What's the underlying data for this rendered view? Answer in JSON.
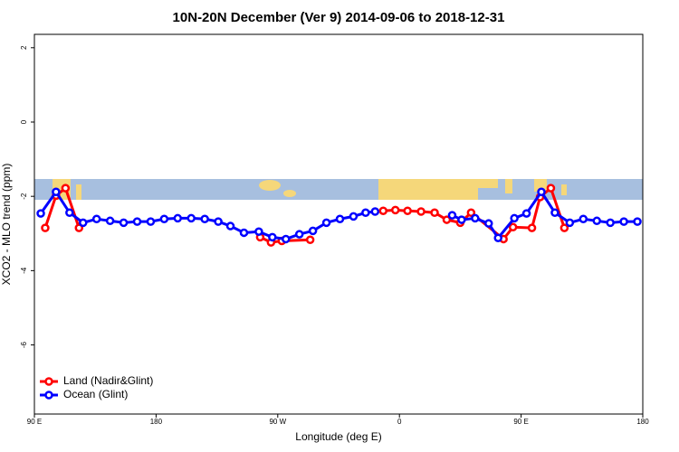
{
  "chart_data": {
    "type": "line",
    "title": "10N-20N December (Ver 9)   2014-09-06 to 2018-12-31",
    "x_label": "Longitude (deg E)",
    "y_label": "XCO2 - MLO trend (ppm)",
    "xlim": [
      90,
      540
    ],
    "xticks": [
      {
        "value": 90,
        "label": "90 E"
      },
      180,
      {
        "value": 270,
        "label": "90 W"
      },
      {
        "value": 360,
        "label": "0"
      },
      {
        "value": 450,
        "label": "90 E"
      },
      {
        "value": 540,
        "label": "180"
      }
    ],
    "ylim": [
      -7.86,
      2.36
    ],
    "yticks": [
      2,
      0,
      -2,
      -4,
      -6
    ],
    "legend": "bottom-left",
    "series": [
      {
        "name": "Land (Nadir&Glint)",
        "color": "#ff0000",
        "x": [
          98,
          106,
          113,
          123,
          null,
          257,
          265,
          273,
          294,
          null,
          348,
          357,
          366,
          376,
          386,
          395,
          405,
          413,
          437,
          444,
          458,
          464,
          472,
          482
        ],
        "values": [
          -2.85,
          -1.98,
          -1.78,
          -2.85,
          null,
          -3.1,
          -3.24,
          -3.2,
          -3.17,
          null,
          -2.39,
          -2.37,
          -2.39,
          -2.41,
          -2.44,
          -2.63,
          -2.71,
          -2.44,
          -3.15,
          -2.83,
          -2.85,
          -2.02,
          -1.78,
          -2.85
        ]
      },
      {
        "name": "Ocean (Glint)",
        "color": "#0000ff",
        "x": [
          94.7,
          106,
          116,
          126,
          136,
          146,
          156,
          166,
          176,
          186,
          196,
          206,
          216,
          226,
          235,
          245,
          256,
          266,
          276,
          286,
          296,
          306,
          316,
          326,
          335,
          342,
          null,
          399,
          406,
          416,
          426,
          433,
          445,
          454,
          465,
          475,
          486,
          496,
          506,
          516,
          526,
          536
        ],
        "values": [
          -2.46,
          -1.88,
          -2.44,
          -2.71,
          -2.61,
          -2.66,
          -2.71,
          -2.68,
          -2.68,
          -2.61,
          -2.59,
          -2.59,
          -2.61,
          -2.68,
          -2.8,
          -2.98,
          -2.95,
          -3.1,
          -3.15,
          -3.02,
          -2.93,
          -2.71,
          -2.61,
          -2.54,
          -2.44,
          -2.41,
          null,
          -2.51,
          -2.63,
          -2.59,
          -2.73,
          -3.12,
          -2.59,
          -2.46,
          -1.88,
          -2.44,
          -2.71,
          -2.61,
          -2.66,
          -2.71,
          -2.68,
          -2.68
        ]
      }
    ]
  }
}
